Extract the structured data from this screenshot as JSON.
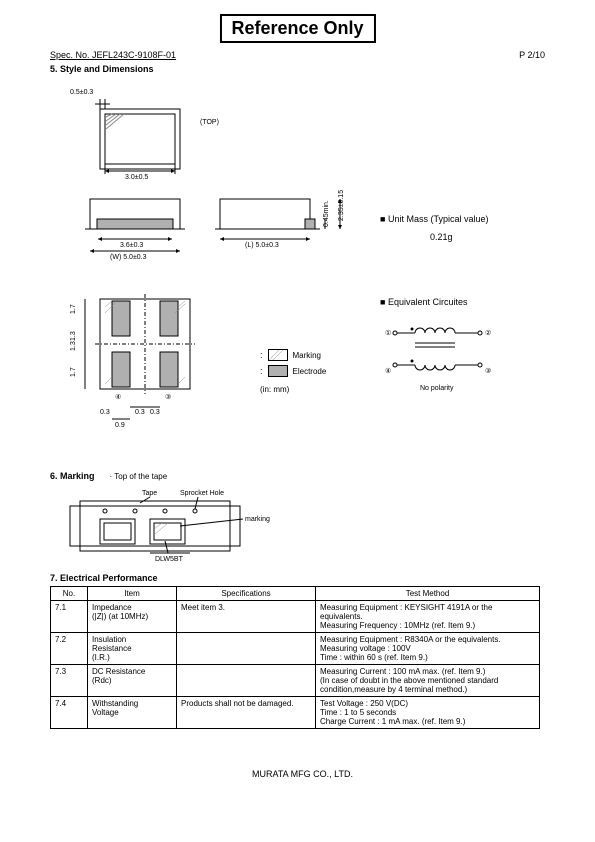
{
  "header": {
    "reference_only": "Reference Only",
    "spec_no": "Spec. No. JEFL243C-9108F-01",
    "page": "P 2/10"
  },
  "section5": {
    "title": "5. Style and Dimensions",
    "top_view": {
      "label": "(TOP)",
      "dims": {
        "top": "0.5±0.3",
        "width": "3.0±0.5"
      }
    },
    "side_views": {
      "inner_w": "3.6±0.3",
      "outer_w": "(W) 5.0±0.3",
      "length": "(L) 5.0±0.3",
      "h_gap": "0.45min.",
      "height": "2.35±0.15"
    },
    "bottom_view": {
      "pad_h1": "1.7",
      "pad_h2": "1.3",
      "pad_h3": "1.7",
      "pad_gap": "0.3",
      "pad_w": "0.9",
      "pad_off": "0.3",
      "pins": {
        "p1": "①",
        "p2": "②",
        "p3": "③",
        "p4": "④"
      }
    },
    "legend": {
      "marking": "Marking",
      "electrode": "Electrode",
      "unit": "(in: mm)"
    },
    "unit_mass": {
      "marker": "■",
      "label": "Unit Mass (Typical value)",
      "value": "0.21g"
    },
    "equiv": {
      "marker": "■",
      "label": "Equivalent Circuites",
      "p1": "①",
      "p2": "②",
      "p3": "③",
      "p4": "④",
      "note": "No polarity"
    }
  },
  "section6": {
    "title": "6. Marking",
    "top_of_tape": "· Top of the tape",
    "tape": "Tape",
    "sprocket": "Sprocket Hole",
    "marking": "marking",
    "code": "DLW5BT"
  },
  "section7": {
    "title": "7. Electrical Performance",
    "headers": {
      "no": "No.",
      "item": "Item",
      "spec": "Specifications",
      "method": "Test Method"
    },
    "rows": [
      {
        "no": "7.1",
        "item": "Impedance\n(|Z|) (at 10MHz)",
        "spec": "Meet item 3.",
        "method": "Measuring Equipment : KEYSIGHT 4191A or the equivalents.\nMeasuring Frequency : 10MHz            (ref. Item 9.)"
      },
      {
        "no": "7.2",
        "item": "Insulation\nResistance\n(I.R.)",
        "spec": "",
        "method": "Measuring Equipment : R8340A or the equivalents.\nMeasuring voltage : 100V\nTime : within 60 s                           (ref. Item 9.)"
      },
      {
        "no": "7.3",
        "item": "DC Resistance\n(Rdc)",
        "spec": "",
        "method": "Measuring Current : 100 mA max.      (ref. Item 9.)\n(In case of doubt in the above mentioned standard\n condition,measure by 4 terminal method.)"
      },
      {
        "no": "7.4",
        "item": "Withstanding\nVoltage",
        "spec": "Products shall not be damaged.",
        "method": "Test Voltage : 250 V(DC)\nTime : 1 to 5 seconds\nCharge Current : 1 mA max.            (ref. Item 9.)"
      }
    ]
  },
  "footer": {
    "company": "MURATA MFG CO., LTD."
  },
  "colors": {
    "black": "#000000",
    "electrode_fill": "#b0b0b0",
    "hatch": "#888888"
  }
}
